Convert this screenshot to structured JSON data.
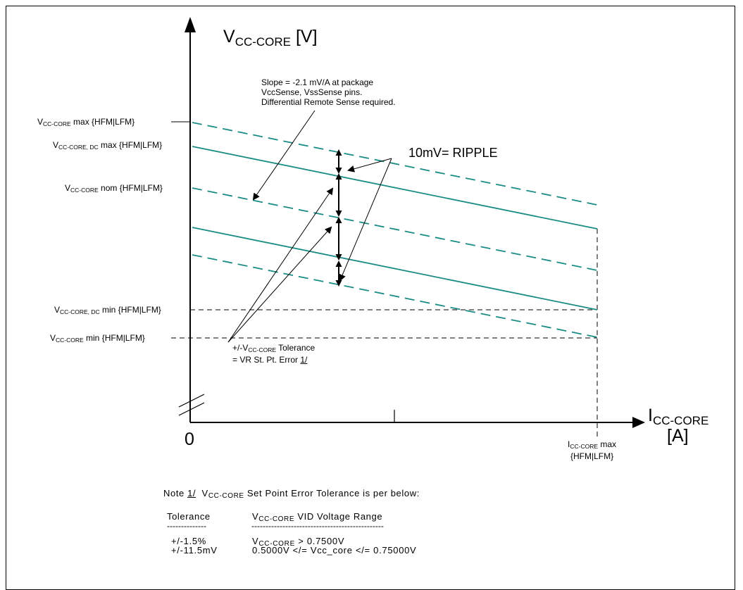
{
  "y_axis": {
    "main": "V",
    "sub": "CC-CORE",
    "unit": " [V]"
  },
  "x_axis": {
    "main": "I",
    "sub": "CC-CORE",
    "unit": "[A]"
  },
  "origin_label": "0",
  "levels": [
    {
      "pre": "V",
      "sub": "CC-CORE",
      "post": " max {HFM|LFM}"
    },
    {
      "pre": "V",
      "sub": "CC-CORE, DC",
      "post": " max {HFM|LFM}"
    },
    {
      "pre": "V",
      "sub": "CC-CORE",
      "post": " nom {HFM|LFM}"
    },
    {
      "pre": "V",
      "sub": "CC-CORE, DC",
      "post": " min {HFM|LFM}"
    },
    {
      "pre": "V",
      "sub": "CC-CORE",
      "post": " min {HFM|LFM}"
    }
  ],
  "slope_note": [
    "Slope = -2.1 mV/A at package",
    "VccSense, VssSense pins.",
    "Differential Remote Sense required."
  ],
  "ripple_label": "10mV= RIPPLE",
  "tolerance_note": {
    "line1_pre": "+/-V",
    "line1_sub": "CC-CORE",
    "line1_post": " Tolerance",
    "line2_pre": "= VR St. Pt. Error ",
    "line2_ref": "1/"
  },
  "icc_max": {
    "pre": "I",
    "sub": "CC-CORE",
    "post": " max",
    "line2": "{HFM|LFM}"
  },
  "footnote": {
    "prefix": "Note ",
    "ref": "1/",
    "pre": "  V",
    "sub": "CC-CORE",
    "post": " Set Point Error Tolerance is per below:",
    "col1_header": "Tolerance",
    "col2_pre": "V",
    "col2_sub": "CC-CORE",
    "col2_post": " VID Voltage Range",
    "col1_rule": "--------------",
    "col2_rule": "-----------------------------------------------",
    "rows": [
      {
        "tol": "+/-1.5%",
        "range_pre": "V",
        "range_sub": "CC-CORE",
        "range_post": " > 0.7500V"
      },
      {
        "tol": "+/-11.5mV",
        "range_pre": "0.5000V </= Vcc_core </= 0.75000V",
        "range_sub": "",
        "range_post": ""
      }
    ]
  },
  "colors": {
    "load_line": "#1a8c85",
    "ink": "#000000"
  }
}
